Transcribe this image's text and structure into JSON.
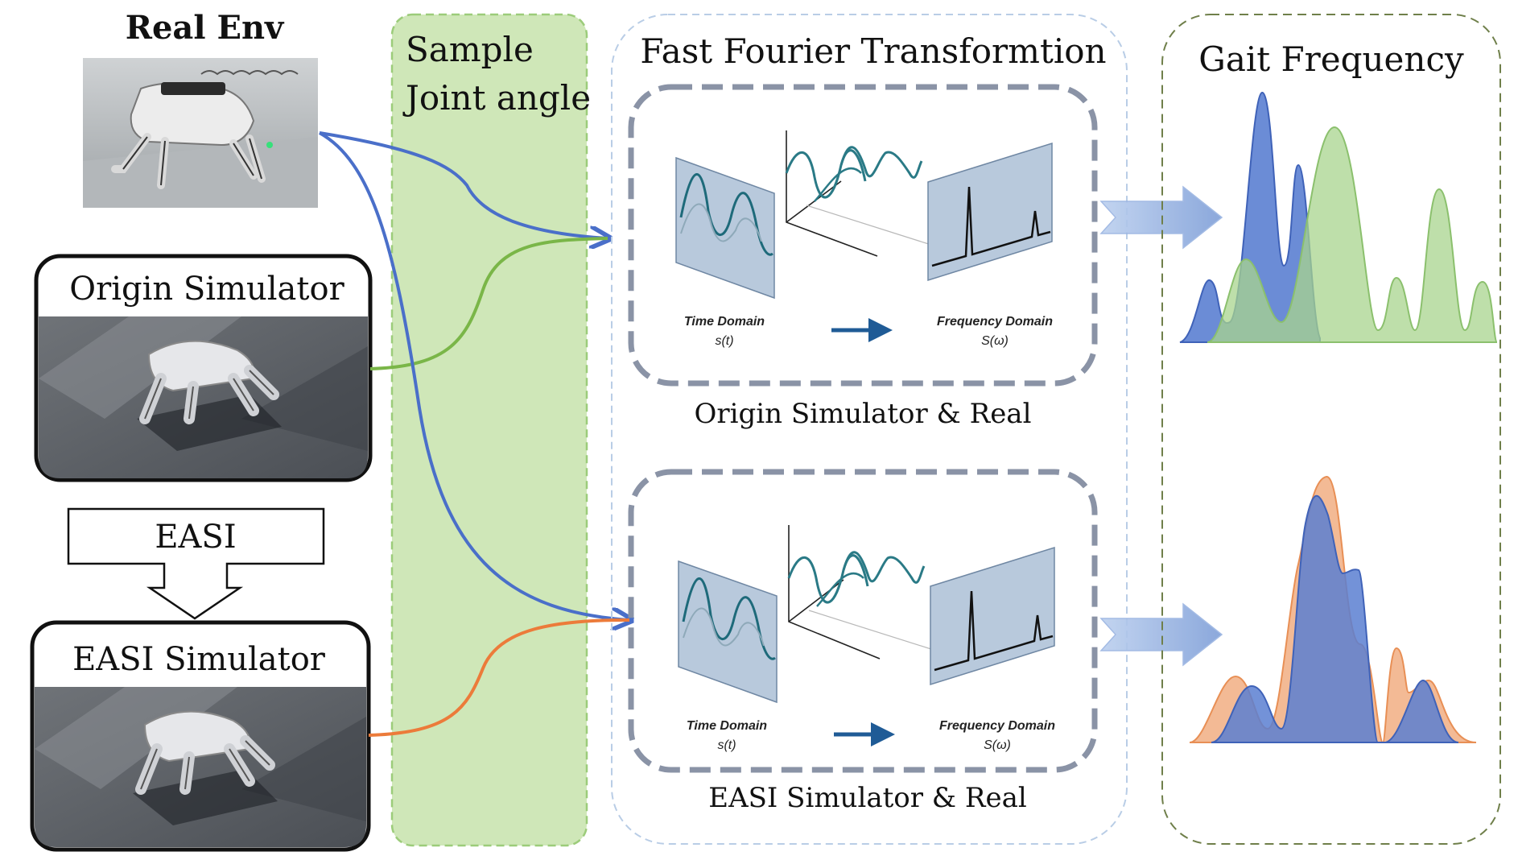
{
  "real_env": {
    "title": "Real Env"
  },
  "origin_sim": {
    "title": "Origin Simulator"
  },
  "easi_block": {
    "label": "EASI"
  },
  "easi_sim": {
    "title": "EASI Simulator"
  },
  "sample": {
    "line1": "Sample",
    "line2": "Joint angle"
  },
  "fft": {
    "title": "Fast Fourier Transformtion",
    "panels": [
      {
        "time_label": "Time Domain",
        "time_sub": "s(t)",
        "freq_label": "Frequency Domain",
        "freq_sub": "S(ω)",
        "caption": "Origin Simulator & Real"
      },
      {
        "time_label": "Time Domain",
        "time_sub": "s(t)",
        "freq_label": "Frequency Domain",
        "freq_sub": "S(ω)",
        "caption": "EASI Simulator & Real"
      }
    ]
  },
  "gait": {
    "title": "Gait Frequency"
  },
  "colors": {
    "blue_curve": "#4a6fc9",
    "green_curve": "#7ab648",
    "orange_curve": "#ec7b3a",
    "sample_fill": "#cfe7b8",
    "sample_border": "#9ccc7a",
    "panel_dash": "#8a93a6",
    "gait_blue": "#5b7fd1",
    "gait_green": "#a8d48e",
    "gait_orange": "#f2b38a"
  }
}
